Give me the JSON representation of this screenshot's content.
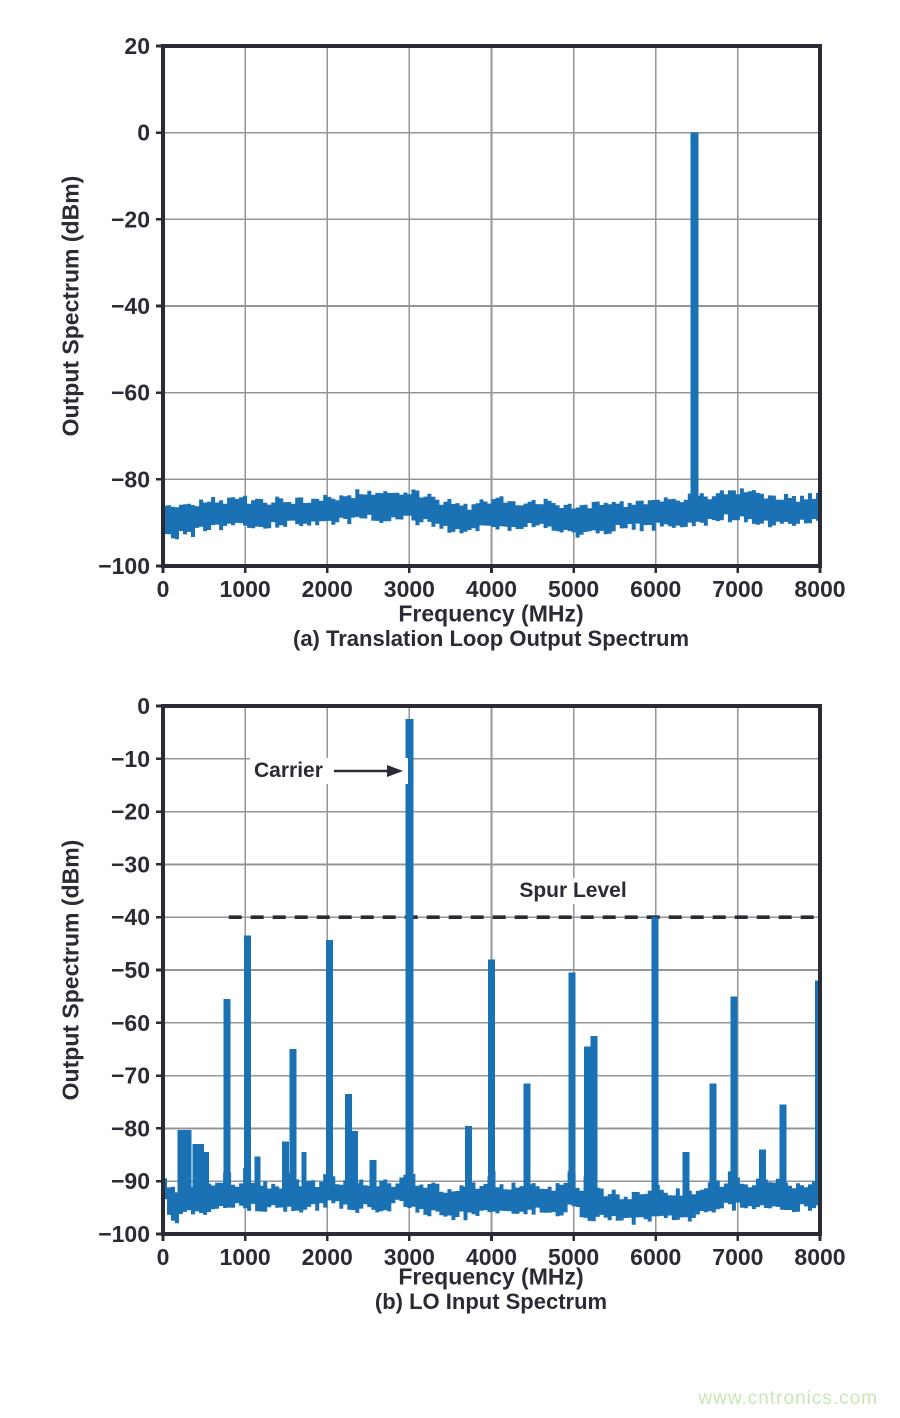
{
  "page": {
    "background": "#ffffff",
    "watermark": {
      "text": "www.cntronics.com",
      "color": "#c9e6b4"
    }
  },
  "style": {
    "bar_color": "#1a72b5",
    "axis_color": "#2b2b35",
    "grid_color": "#95959a",
    "text_color": "#2b2b35",
    "dashed_line_color": "#2b2b35"
  },
  "chart_data": [
    {
      "id": "a",
      "type": "bar",
      "subtype": "rf-spectrum",
      "caption": "(a) Translation Loop Output Spectrum",
      "xlabel": "Frequency (MHz)",
      "ylabel": "Output Spectrum (dBm)",
      "xlim": [
        0,
        8000
      ],
      "ylim": [
        -100,
        20
      ],
      "x_ticks": [
        0,
        1000,
        2000,
        3000,
        4000,
        5000,
        6000,
        7000,
        8000
      ],
      "y_ticks": [
        20,
        0,
        -20,
        -40,
        -60,
        -80,
        -100
      ],
      "grid": true,
      "noise_floor_mean_dbm": -87.5,
      "spurs": [
        {
          "freq_mhz": 6470,
          "level_dbm": 0
        }
      ],
      "noise_envelope": [
        [
          0,
          -85.5,
          -91.5
        ],
        [
          150,
          -86.5,
          -93
        ],
        [
          350,
          -86,
          -92.5
        ],
        [
          600,
          -85,
          -91
        ],
        [
          900,
          -84.5,
          -90.5
        ],
        [
          1200,
          -85,
          -91
        ],
        [
          1500,
          -84.8,
          -90.5
        ],
        [
          1800,
          -84.5,
          -90.2
        ],
        [
          2100,
          -84.5,
          -90
        ],
        [
          2400,
          -83,
          -89
        ],
        [
          2700,
          -83.2,
          -89.2
        ],
        [
          3000,
          -83,
          -89.3
        ],
        [
          3300,
          -84.5,
          -90.5
        ],
        [
          3600,
          -86,
          -92
        ],
        [
          3800,
          -86.2,
          -92.2
        ],
        [
          4000,
          -84.5,
          -90.5
        ],
        [
          4200,
          -85,
          -91
        ],
        [
          4500,
          -85.2,
          -91
        ],
        [
          4800,
          -85.5,
          -91.5
        ],
        [
          5050,
          -86.5,
          -93
        ],
        [
          5300,
          -86,
          -92
        ],
        [
          5600,
          -85.5,
          -91.3
        ],
        [
          5900,
          -85.3,
          -91
        ],
        [
          6200,
          -85,
          -90.8
        ],
        [
          6500,
          -84.5,
          -90.3
        ],
        [
          6800,
          -83,
          -89
        ],
        [
          7100,
          -83,
          -89
        ],
        [
          7400,
          -84.2,
          -90.2
        ],
        [
          7700,
          -84.3,
          -90.3
        ],
        [
          8000,
          -84,
          -90
        ]
      ]
    },
    {
      "id": "b",
      "type": "bar",
      "subtype": "rf-spectrum",
      "caption": "(b) LO Input Spectrum",
      "xlabel": "Frequency (MHz)",
      "ylabel": "Output Spectrum (dBm)",
      "xlim": [
        0,
        8000
      ],
      "ylim": [
        -100,
        0
      ],
      "x_ticks": [
        0,
        1000,
        2000,
        3000,
        4000,
        5000,
        6000,
        7000,
        8000
      ],
      "y_ticks": [
        0,
        -10,
        -20,
        -30,
        -40,
        -50,
        -60,
        -70,
        -80,
        -90,
        -100
      ],
      "grid": true,
      "noise_floor_mean_dbm": -92.5,
      "annotations": {
        "carrier": {
          "label": "Carrier",
          "freq_mhz": 3000,
          "level_dbm": -2.5
        },
        "spur_level": {
          "label": "Spur Level",
          "level_dbm": -40,
          "line_style": "dashed",
          "line_start_mhz": 800
        }
      },
      "spurs": [
        {
          "freq_mhz": 260,
          "level_dbm": -80.3,
          "span_mhz": 170
        },
        {
          "freq_mhz": 430,
          "level_dbm": -83,
          "span_mhz": 140
        },
        {
          "freq_mhz": 530,
          "level_dbm": -84.5,
          "span_mhz": 60
        },
        {
          "freq_mhz": 780,
          "level_dbm": -55.5
        },
        {
          "freq_mhz": 1030,
          "level_dbm": -43.5
        },
        {
          "freq_mhz": 1150,
          "level_dbm": -85.3,
          "span_mhz": 70
        },
        {
          "freq_mhz": 1490,
          "level_dbm": -82.5
        },
        {
          "freq_mhz": 1580,
          "level_dbm": -65
        },
        {
          "freq_mhz": 1715,
          "level_dbm": -84.5,
          "span_mhz": 60
        },
        {
          "freq_mhz": 2030,
          "level_dbm": -44.3
        },
        {
          "freq_mhz": 2260,
          "level_dbm": -73.5
        },
        {
          "freq_mhz": 2330,
          "level_dbm": -80.5
        },
        {
          "freq_mhz": 2560,
          "level_dbm": -86
        },
        {
          "freq_mhz": 3000,
          "level_dbm": -2.5
        },
        {
          "freq_mhz": 3720,
          "level_dbm": -79.5
        },
        {
          "freq_mhz": 4000,
          "level_dbm": -48
        },
        {
          "freq_mhz": 4430,
          "level_dbm": -71.5
        },
        {
          "freq_mhz": 4980,
          "level_dbm": -50.5
        },
        {
          "freq_mhz": 5170,
          "level_dbm": -64.5
        },
        {
          "freq_mhz": 5250,
          "level_dbm": -62.5
        },
        {
          "freq_mhz": 5990,
          "level_dbm": -40
        },
        {
          "freq_mhz": 6370,
          "level_dbm": -84.5
        },
        {
          "freq_mhz": 6700,
          "level_dbm": -71.5
        },
        {
          "freq_mhz": 6950,
          "level_dbm": -55
        },
        {
          "freq_mhz": 7300,
          "level_dbm": -84
        },
        {
          "freq_mhz": 7550,
          "level_dbm": -75.5
        },
        {
          "freq_mhz": 7980,
          "level_dbm": -52
        }
      ],
      "noise_envelope": [
        [
          0,
          -89.5,
          -93.5
        ],
        [
          120,
          -91.5,
          -97.5
        ],
        [
          300,
          -90.5,
          -96
        ],
        [
          500,
          -91,
          -95.5
        ],
        [
          800,
          -90.5,
          -95
        ],
        [
          1100,
          -90.8,
          -95.2
        ],
        [
          1400,
          -91,
          -95.5
        ],
        [
          1700,
          -90.5,
          -95
        ],
        [
          2000,
          -90,
          -94.5
        ],
        [
          2300,
          -90.5,
          -95
        ],
        [
          2600,
          -91,
          -95.5
        ],
        [
          2900,
          -89.8,
          -94.2
        ],
        [
          3200,
          -90.8,
          -95.5
        ],
        [
          3500,
          -92,
          -97
        ],
        [
          3800,
          -91.5,
          -96.2
        ],
        [
          4100,
          -91,
          -95.6
        ],
        [
          4400,
          -91.3,
          -95.8
        ],
        [
          4700,
          -91.5,
          -96
        ],
        [
          5000,
          -90.8,
          -95.2
        ],
        [
          5150,
          -92.2,
          -97
        ],
        [
          5500,
          -92.5,
          -97.5
        ],
        [
          5800,
          -92.5,
          -97.3
        ],
        [
          6100,
          -92.2,
          -97
        ],
        [
          6400,
          -92.3,
          -96.8
        ],
        [
          6700,
          -91,
          -95.5
        ],
        [
          7000,
          -90,
          -94.5
        ],
        [
          7300,
          -90.5,
          -95
        ],
        [
          7600,
          -91,
          -95.5
        ],
        [
          8000,
          -90.5,
          -95
        ]
      ]
    }
  ]
}
